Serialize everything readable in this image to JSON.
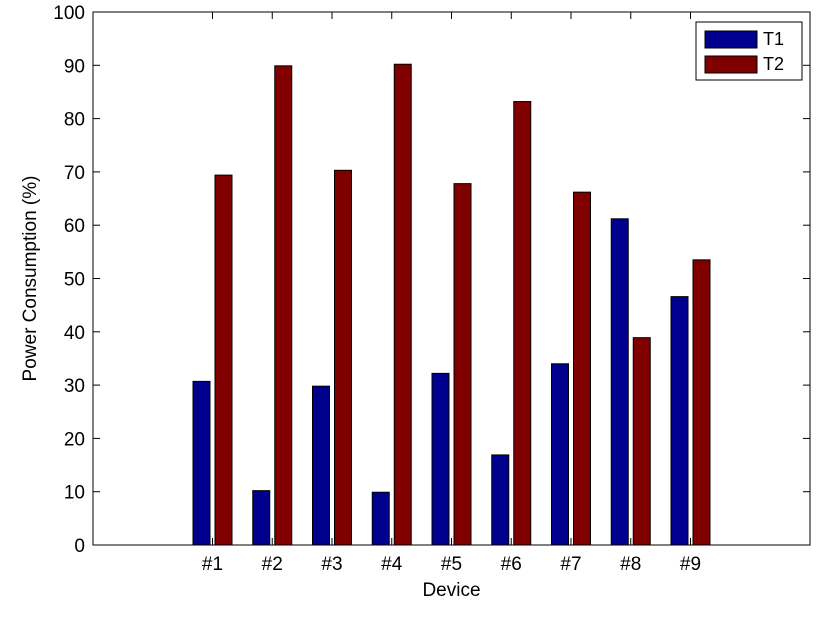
{
  "chart_data": {
    "type": "bar",
    "title": "",
    "xlabel": "Device",
    "ylabel": "Power Consumption (%)",
    "ylim": [
      0,
      100
    ],
    "yticks": [
      0,
      10,
      20,
      30,
      40,
      50,
      60,
      70,
      80,
      90,
      100
    ],
    "categories": [
      "#1",
      "#2",
      "#3",
      "#4",
      "#5",
      "#6",
      "#7",
      "#8",
      "#9"
    ],
    "series": [
      {
        "name": "T1",
        "color": "#00008f",
        "values": [
          30.7,
          10.2,
          29.8,
          9.9,
          32.2,
          16.9,
          34.0,
          61.2,
          46.6
        ]
      },
      {
        "name": "T2",
        "color": "#800000",
        "values": [
          69.4,
          89.9,
          70.3,
          90.2,
          67.8,
          83.2,
          66.2,
          38.9,
          53.5
        ]
      }
    ],
    "grid": false,
    "legend_position": "top-right"
  }
}
